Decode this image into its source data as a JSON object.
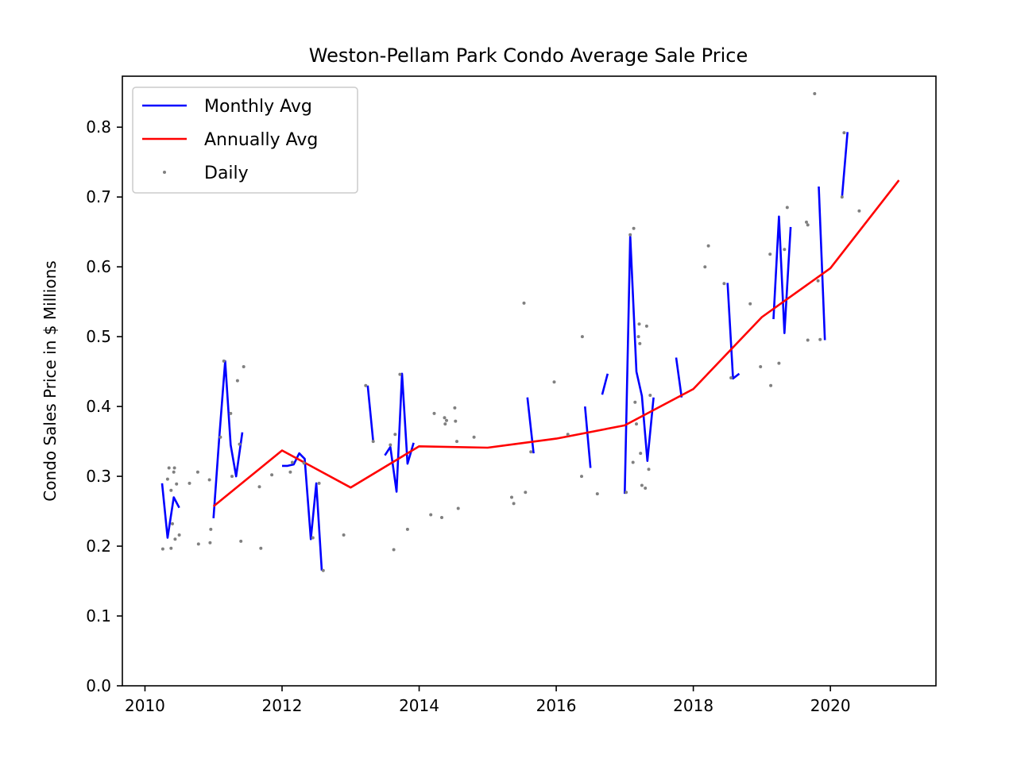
{
  "chart_data": {
    "type": "line",
    "title": "Weston-Pellam Park Condo Average Sale Price",
    "xlabel": "",
    "ylabel": "Condo Sales Price in $ Millions",
    "xlim": [
      2009.67,
      2021.54
    ],
    "ylim": [
      0.0,
      0.873
    ],
    "x_ticks": [
      2010,
      2012,
      2014,
      2016,
      2018,
      2020
    ],
    "x_tick_labels": [
      "2010",
      "2012",
      "2014",
      "2016",
      "2018",
      "2020"
    ],
    "y_ticks": [
      0.0,
      0.1,
      0.2,
      0.3,
      0.4,
      0.5,
      0.6,
      0.7,
      0.8
    ],
    "y_tick_labels": [
      "0.0",
      "0.1",
      "0.2",
      "0.3",
      "0.4",
      "0.5",
      "0.6",
      "0.7",
      "0.8"
    ],
    "grid": false,
    "legend": {
      "position": "upper-left",
      "entries": [
        "Monthly Avg",
        "Annually Avg",
        "Daily"
      ]
    },
    "colors": {
      "monthly": "#0000ff",
      "annual": "#ff0000",
      "daily": "#808080"
    },
    "series": [
      {
        "name": "Monthly Avg",
        "style": "line",
        "segments": [
          [
            [
              2010.25,
              0.29
            ],
            [
              2010.33,
              0.212
            ],
            [
              2010.42,
              0.27
            ],
            [
              2010.5,
              0.255
            ]
          ],
          [
            [
              2011.0,
              0.24
            ],
            [
              2011.08,
              0.35
            ],
            [
              2011.17,
              0.465
            ],
            [
              2011.25,
              0.345
            ],
            [
              2011.33,
              0.3
            ],
            [
              2011.42,
              0.363
            ]
          ],
          [
            [
              2012.0,
              0.315
            ],
            [
              2012.08,
              0.315
            ],
            [
              2012.17,
              0.317
            ],
            [
              2012.25,
              0.333
            ],
            [
              2012.33,
              0.325
            ],
            [
              2012.42,
              0.21
            ],
            [
              2012.5,
              0.29
            ],
            [
              2012.58,
              0.165
            ]
          ],
          [
            [
              2013.25,
              0.43
            ],
            [
              2013.33,
              0.35
            ]
          ],
          [
            [
              2013.5,
              0.33
            ],
            [
              2013.58,
              0.342
            ],
            [
              2013.67,
              0.278
            ],
            [
              2013.75,
              0.447
            ],
            [
              2013.83,
              0.318
            ],
            [
              2013.92,
              0.348
            ]
          ],
          [
            [
              2015.58,
              0.413
            ],
            [
              2015.67,
              0.333
            ]
          ],
          [
            [
              2016.42,
              0.4
            ],
            [
              2016.5,
              0.312
            ]
          ],
          [
            [
              2016.67,
              0.417
            ],
            [
              2016.75,
              0.447
            ]
          ],
          [
            [
              2017.0,
              0.275
            ],
            [
              2017.08,
              0.645
            ],
            [
              2017.17,
              0.45
            ],
            [
              2017.25,
              0.415
            ],
            [
              2017.33,
              0.322
            ],
            [
              2017.42,
              0.413
            ]
          ],
          [
            [
              2017.75,
              0.47
            ],
            [
              2017.83,
              0.413
            ]
          ],
          [
            [
              2018.5,
              0.577
            ],
            [
              2018.58,
              0.44
            ],
            [
              2018.67,
              0.447
            ]
          ],
          [
            [
              2019.17,
              0.525
            ],
            [
              2019.25,
              0.672
            ],
            [
              2019.33,
              0.505
            ],
            [
              2019.42,
              0.657
            ]
          ],
          [
            [
              2019.83,
              0.715
            ],
            [
              2019.92,
              0.495
            ]
          ],
          [
            [
              2020.17,
              0.7
            ],
            [
              2020.25,
              0.793
            ]
          ]
        ]
      },
      {
        "name": "Annually Avg",
        "style": "line",
        "points": [
          [
            2011,
            0.257
          ],
          [
            2012,
            0.337
          ],
          [
            2013,
            0.284
          ],
          [
            2014,
            0.343
          ],
          [
            2015,
            0.341
          ],
          [
            2016,
            0.354
          ],
          [
            2017,
            0.373
          ],
          [
            2018,
            0.425
          ],
          [
            2019,
            0.528
          ],
          [
            2020,
            0.598
          ],
          [
            2021,
            0.724
          ]
        ]
      },
      {
        "name": "Daily",
        "style": "scatter",
        "points": [
          [
            2010.26,
            0.196
          ],
          [
            2010.33,
            0.296
          ],
          [
            2010.35,
            0.312
          ],
          [
            2010.38,
            0.28
          ],
          [
            2010.38,
            0.197
          ],
          [
            2010.4,
            0.232
          ],
          [
            2010.42,
            0.306
          ],
          [
            2010.43,
            0.312
          ],
          [
            2010.44,
            0.21
          ],
          [
            2010.46,
            0.289
          ],
          [
            2010.5,
            0.216
          ],
          [
            2010.65,
            0.29
          ],
          [
            2010.77,
            0.306
          ],
          [
            2010.78,
            0.203
          ],
          [
            2010.94,
            0.295
          ],
          [
            2010.95,
            0.205
          ],
          [
            2010.96,
            0.224
          ],
          [
            2011.1,
            0.356
          ],
          [
            2011.15,
            0.465
          ],
          [
            2011.25,
            0.39
          ],
          [
            2011.27,
            0.3
          ],
          [
            2011.35,
            0.437
          ],
          [
            2011.38,
            0.346
          ],
          [
            2011.4,
            0.207
          ],
          [
            2011.44,
            0.457
          ],
          [
            2011.67,
            0.285
          ],
          [
            2011.69,
            0.197
          ],
          [
            2011.85,
            0.302
          ],
          [
            2012.12,
            0.306
          ],
          [
            2012.15,
            0.32
          ],
          [
            2012.32,
            0.319
          ],
          [
            2012.45,
            0.212
          ],
          [
            2012.54,
            0.29
          ],
          [
            2012.6,
            0.165
          ],
          [
            2012.9,
            0.216
          ],
          [
            2013.22,
            0.43
          ],
          [
            2013.33,
            0.35
          ],
          [
            2013.58,
            0.345
          ],
          [
            2013.63,
            0.195
          ],
          [
            2013.65,
            0.36
          ],
          [
            2013.72,
            0.446
          ],
          [
            2013.83,
            0.224
          ],
          [
            2014.17,
            0.245
          ],
          [
            2014.22,
            0.39
          ],
          [
            2014.33,
            0.241
          ],
          [
            2014.37,
            0.384
          ],
          [
            2014.38,
            0.375
          ],
          [
            2014.4,
            0.38
          ],
          [
            2014.52,
            0.398
          ],
          [
            2014.53,
            0.379
          ],
          [
            2014.55,
            0.35
          ],
          [
            2014.57,
            0.254
          ],
          [
            2014.8,
            0.356
          ],
          [
            2015.35,
            0.27
          ],
          [
            2015.38,
            0.261
          ],
          [
            2015.53,
            0.548
          ],
          [
            2015.55,
            0.277
          ],
          [
            2015.63,
            0.335
          ],
          [
            2015.97,
            0.435
          ],
          [
            2016.17,
            0.36
          ],
          [
            2016.37,
            0.3
          ],
          [
            2016.38,
            0.5
          ],
          [
            2016.6,
            0.275
          ],
          [
            2017.02,
            0.277
          ],
          [
            2017.08,
            0.646
          ],
          [
            2017.12,
            0.32
          ],
          [
            2017.13,
            0.655
          ],
          [
            2017.15,
            0.406
          ],
          [
            2017.17,
            0.375
          ],
          [
            2017.2,
            0.5
          ],
          [
            2017.21,
            0.518
          ],
          [
            2017.22,
            0.49
          ],
          [
            2017.23,
            0.333
          ],
          [
            2017.25,
            0.287
          ],
          [
            2017.3,
            0.283
          ],
          [
            2017.32,
            0.515
          ],
          [
            2017.35,
            0.31
          ],
          [
            2017.37,
            0.416
          ],
          [
            2018.17,
            0.6
          ],
          [
            2018.22,
            0.63
          ],
          [
            2018.45,
            0.576
          ],
          [
            2018.55,
            0.441
          ],
          [
            2018.83,
            0.547
          ],
          [
            2018.98,
            0.457
          ],
          [
            2019.12,
            0.618
          ],
          [
            2019.13,
            0.43
          ],
          [
            2019.25,
            0.462
          ],
          [
            2019.33,
            0.625
          ],
          [
            2019.37,
            0.685
          ],
          [
            2019.65,
            0.664
          ],
          [
            2019.67,
            0.66
          ],
          [
            2019.67,
            0.495
          ],
          [
            2019.77,
            0.848
          ],
          [
            2019.82,
            0.58
          ],
          [
            2019.85,
            0.496
          ],
          [
            2020.17,
            0.7
          ],
          [
            2020.2,
            0.792
          ],
          [
            2020.42,
            0.68
          ]
        ]
      }
    ]
  }
}
